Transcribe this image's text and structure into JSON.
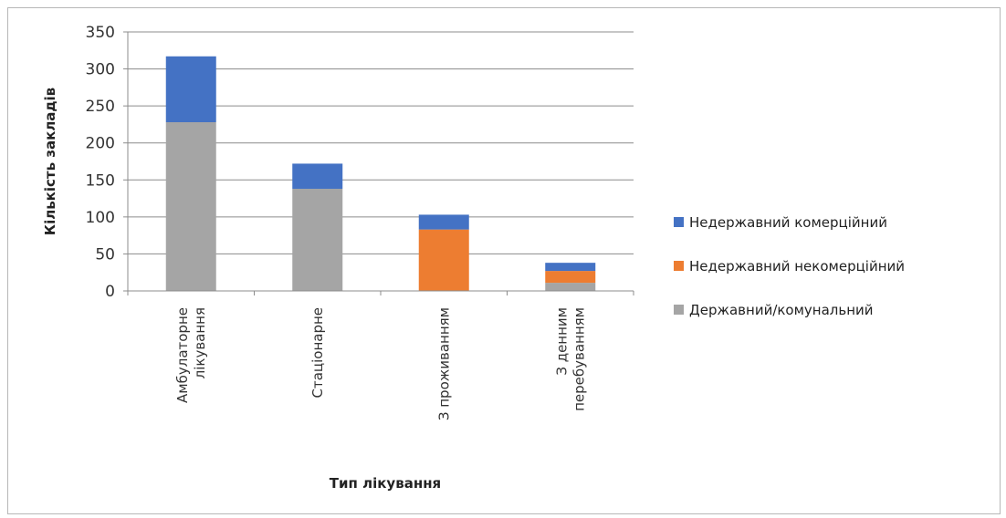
{
  "chart_data": {
    "type": "bar",
    "stacked": true,
    "title": "",
    "xlabel": "Тип лікування",
    "ylabel": "Кількість закладів",
    "ylim": [
      0,
      350
    ],
    "yticks": [
      0,
      50,
      100,
      150,
      200,
      250,
      300,
      350
    ],
    "grid": true,
    "legend_position": "right",
    "categories": [
      [
        "Амбулаторне",
        "лікування"
      ],
      [
        "Стаціонарне"
      ],
      [
        "З проживанням"
      ],
      [
        "З денним",
        "перебуванням"
      ]
    ],
    "series": [
      {
        "name": "Державний/комунальний",
        "color": "#a5a5a5",
        "values": [
          228,
          138,
          0,
          11
        ]
      },
      {
        "name": "Недержавний некомерційний",
        "color": "#ed7d31",
        "values": [
          0,
          0,
          83,
          16
        ]
      },
      {
        "name": "Недержавний комерційний",
        "color": "#4472c4",
        "values": [
          89,
          34,
          20,
          11
        ]
      }
    ],
    "legend_order": [
      "Недержавний комерційний",
      "Недержавний некомерційний",
      "Державний/комунальний"
    ]
  }
}
